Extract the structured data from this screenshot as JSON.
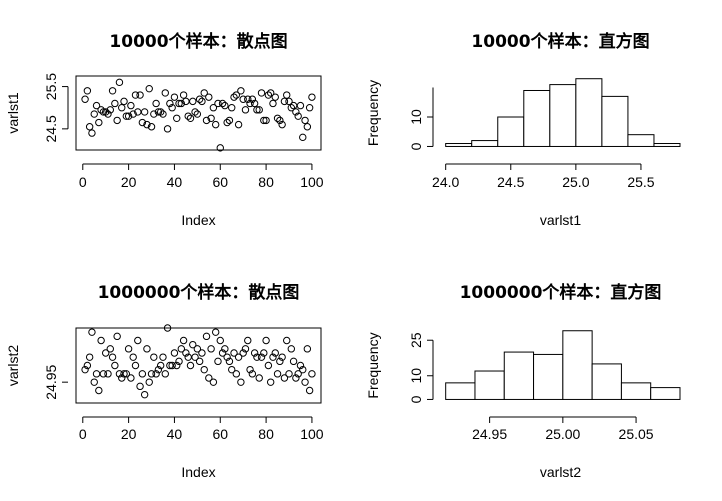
{
  "chart_data": [
    {
      "type": "scatter",
      "title": "10000个样本：散点图",
      "xlabel": "Index",
      "ylabel": "varlst1",
      "xlim": [
        1,
        100
      ],
      "ylim": [
        24.0,
        25.75
      ],
      "x_ticks": [
        "0",
        "20",
        "40",
        "60",
        "80",
        "100"
      ],
      "y_ticks": [
        "24.5",
        "25.5"
      ],
      "grid": false,
      "x": [
        1,
        2,
        3,
        4,
        5,
        6,
        7,
        8,
        9,
        10,
        11,
        12,
        13,
        14,
        15,
        16,
        17,
        18,
        19,
        20,
        21,
        22,
        23,
        24,
        25,
        26,
        27,
        28,
        29,
        30,
        31,
        32,
        33,
        34,
        35,
        36,
        37,
        38,
        39,
        40,
        41,
        42,
        43,
        44,
        45,
        46,
        47,
        48,
        49,
        50,
        51,
        52,
        53,
        54,
        55,
        56,
        57,
        58,
        59,
        60,
        61,
        62,
        63,
        64,
        65,
        66,
        67,
        68,
        69,
        70,
        71,
        72,
        73,
        74,
        75,
        76,
        77,
        78,
        79,
        80,
        81,
        82,
        83,
        84,
        85,
        86,
        87,
        88,
        89,
        90,
        91,
        92,
        93,
        94,
        95,
        96,
        97,
        98,
        99,
        100
      ],
      "y": [
        25.2,
        25.4,
        24.55,
        24.4,
        24.85,
        25.05,
        24.65,
        24.95,
        24.9,
        24.9,
        24.85,
        24.95,
        25.4,
        25.1,
        24.7,
        25.6,
        25.0,
        25.15,
        24.8,
        24.8,
        25.05,
        24.85,
        25.3,
        24.9,
        25.3,
        24.65,
        24.9,
        24.6,
        25.45,
        24.55,
        24.85,
        25.1,
        24.9,
        24.9,
        24.85,
        25.35,
        24.5,
        25.1,
        25.0,
        25.25,
        24.75,
        25.1,
        25.1,
        25.3,
        25.15,
        24.8,
        24.75,
        25.15,
        24.9,
        24.85,
        25.2,
        25.15,
        25.35,
        24.7,
        25.25,
        24.75,
        25.0,
        24.6,
        25.1,
        24.05,
        25.1,
        25.05,
        24.65,
        24.7,
        25.0,
        25.25,
        25.3,
        24.6,
        25.4,
        25.2,
        24.95,
        25.2,
        25.1,
        25.2,
        25.1,
        24.95,
        24.95,
        25.35,
        24.7,
        24.7,
        25.3,
        25.35,
        25.1,
        25.25,
        24.75,
        24.7,
        24.6,
        25.15,
        25.3,
        25.15,
        25.0,
        25.05,
        24.9,
        24.8,
        25.05,
        24.3,
        24.7,
        24.55,
        25.0,
        25.25
      ]
    },
    {
      "type": "bar",
      "title": "10000个样本：直方图",
      "xlabel": "varlst1",
      "ylabel": "Frequency",
      "bin_edges": [
        24.0,
        24.2,
        24.4,
        24.6,
        24.8,
        25.0,
        25.2,
        25.4,
        25.6,
        25.8
      ],
      "values": [
        1,
        2,
        10,
        19,
        21,
        23,
        17,
        4,
        1
      ],
      "xlim": [
        24.0,
        25.8
      ],
      "ylim": [
        0,
        20
      ],
      "x_ticks": [
        "24.0",
        "24.5",
        "25.0",
        "25.5"
      ],
      "y_ticks": [
        "0",
        "10"
      ],
      "grid": false
    },
    {
      "type": "scatter",
      "title": "1000000个样本：散点图",
      "xlabel": "Index",
      "ylabel": "varlst2",
      "xlim": [
        1,
        100
      ],
      "ylim": [
        24.9,
        25.08
      ],
      "x_ticks": [
        "0",
        "20",
        "40",
        "60",
        "80",
        "100"
      ],
      "y_ticks": [
        "24.95"
      ],
      "grid": false,
      "x": [
        1,
        2,
        3,
        4,
        5,
        6,
        7,
        8,
        9,
        10,
        11,
        12,
        13,
        14,
        15,
        16,
        17,
        18,
        19,
        20,
        21,
        22,
        23,
        24,
        25,
        26,
        27,
        28,
        29,
        30,
        31,
        32,
        33,
        34,
        35,
        36,
        37,
        38,
        39,
        40,
        41,
        42,
        43,
        44,
        45,
        46,
        47,
        48,
        49,
        50,
        51,
        52,
        53,
        54,
        55,
        56,
        57,
        58,
        59,
        60,
        61,
        62,
        63,
        64,
        65,
        66,
        67,
        68,
        69,
        70,
        71,
        72,
        73,
        74,
        75,
        76,
        77,
        78,
        79,
        80,
        81,
        82,
        83,
        84,
        85,
        86,
        87,
        88,
        89,
        90,
        91,
        92,
        93,
        94,
        95,
        96,
        97,
        98,
        99,
        100
      ],
      "y": [
        24.98,
        24.99,
        25.01,
        25.07,
        24.95,
        24.97,
        24.93,
        25.05,
        24.97,
        25.02,
        24.97,
        25.03,
        25.01,
        24.99,
        25.06,
        24.97,
        24.96,
        24.97,
        24.97,
        25.03,
        24.96,
        25.01,
        24.99,
        25.05,
        24.94,
        24.97,
        24.92,
        25.03,
        24.95,
        24.97,
        25.01,
        24.97,
        24.98,
        24.99,
        25.01,
        24.97,
        25.08,
        24.99,
        24.99,
        25.02,
        24.99,
        25.0,
        25.03,
        25.05,
        25.02,
        25.01,
        24.99,
        25.04,
        25.01,
        25.03,
        25.0,
        25.02,
        24.98,
        25.06,
        24.96,
        25.03,
        24.95,
        25.07,
        25.0,
        25.05,
        25.02,
        25.03,
        25.01,
        25.0,
        24.98,
        25.02,
        24.97,
        25.01,
        24.95,
        25.02,
        25.03,
        25.05,
        24.98,
        24.97,
        25.02,
        25.01,
        24.96,
        25.01,
        25.02,
        25.05,
        24.99,
        24.95,
        25.01,
        25.02,
        24.97,
        25.0,
        25.01,
        24.96,
        25.05,
        24.97,
        25.03,
        25.0,
        24.96,
        24.97,
        24.99,
        24.98,
        24.95,
        25.03,
        24.93,
        24.97
      ]
    },
    {
      "type": "bar",
      "title": "1000000个样本：直方图",
      "xlabel": "varlst2",
      "ylabel": "Frequency",
      "bin_edges": [
        24.92,
        24.94,
        24.96,
        24.98,
        25.0,
        25.02,
        25.04,
        25.06,
        25.08
      ],
      "values": [
        7,
        12,
        20,
        19,
        29,
        15,
        7,
        5
      ],
      "xlim": [
        24.92,
        25.08
      ],
      "ylim": [
        0,
        25
      ],
      "x_ticks": [
        "24.95",
        "25.00",
        "25.05"
      ],
      "y_ticks": [
        "0",
        "10",
        "25"
      ],
      "grid": false
    }
  ]
}
